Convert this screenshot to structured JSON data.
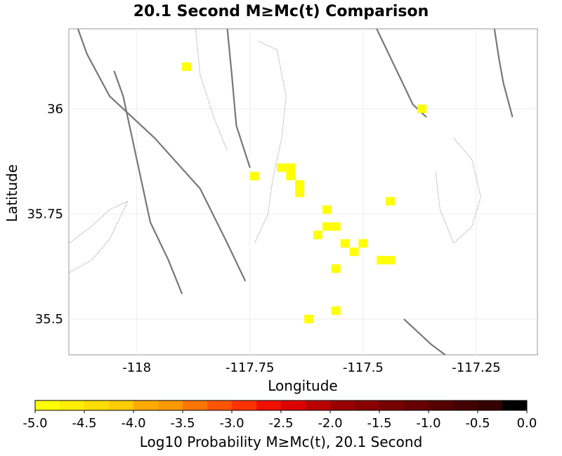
{
  "chart_data": {
    "type": "heatmap",
    "title": "20.1 Second M≥Mc(t) Comparison",
    "xlabel": "Longitude",
    "ylabel": "Latitude",
    "xlim": [
      -118.15,
      -117.115
    ],
    "ylim": [
      35.415,
      36.19
    ],
    "x_ticks": [
      {
        "value": -118,
        "label": "-118"
      },
      {
        "value": -117.75,
        "label": "-117.75"
      },
      {
        "value": -117.5,
        "label": "-117.5"
      },
      {
        "value": -117.25,
        "label": "-117.25"
      }
    ],
    "y_ticks": [
      {
        "value": 36,
        "label": "36"
      },
      {
        "value": 35.75,
        "label": "35.75"
      },
      {
        "value": 35.5,
        "label": "35.5"
      }
    ],
    "grid": true,
    "cell_size_deg": 0.02,
    "cells": [
      {
        "lon": -117.89,
        "lat": 36.1,
        "value": -5.0
      },
      {
        "lon": -117.37,
        "lat": 36.0,
        "value": -5.0
      },
      {
        "lon": -117.74,
        "lat": 35.84,
        "value": -5.0
      },
      {
        "lon": -117.68,
        "lat": 35.86,
        "value": -5.0
      },
      {
        "lon": -117.66,
        "lat": 35.86,
        "value": -5.0
      },
      {
        "lon": -117.66,
        "lat": 35.84,
        "value": -5.0
      },
      {
        "lon": -117.64,
        "lat": 35.82,
        "value": -5.0
      },
      {
        "lon": -117.64,
        "lat": 35.8,
        "value": -5.0
      },
      {
        "lon": -117.58,
        "lat": 35.76,
        "value": -5.0
      },
      {
        "lon": -117.58,
        "lat": 35.72,
        "value": -5.0
      },
      {
        "lon": -117.56,
        "lat": 35.72,
        "value": -5.0
      },
      {
        "lon": -117.6,
        "lat": 35.7,
        "value": -5.0
      },
      {
        "lon": -117.54,
        "lat": 35.68,
        "value": -5.0
      },
      {
        "lon": -117.52,
        "lat": 35.66,
        "value": -5.0
      },
      {
        "lon": -117.5,
        "lat": 35.68,
        "value": -5.0
      },
      {
        "lon": -117.46,
        "lat": 35.64,
        "value": -5.0
      },
      {
        "lon": -117.44,
        "lat": 35.64,
        "value": -5.0
      },
      {
        "lon": -117.44,
        "lat": 35.78,
        "value": -5.0
      },
      {
        "lon": -117.56,
        "lat": 35.62,
        "value": -5.0
      },
      {
        "lon": -117.56,
        "lat": 35.52,
        "value": -5.0
      },
      {
        "lon": -117.62,
        "lat": 35.5,
        "value": -5.0
      }
    ],
    "faults": [
      [
        [
          -118.13,
          36.19
        ],
        [
          -118.11,
          36.13
        ],
        [
          -118.06,
          36.03
        ],
        [
          -117.96,
          35.93
        ],
        [
          -117.86,
          35.81
        ],
        [
          -117.8,
          35.68
        ],
        [
          -117.76,
          35.59
        ]
      ],
      [
        [
          -118.05,
          36.09
        ],
        [
          -118.03,
          36.03
        ],
        [
          -118.01,
          35.93
        ],
        [
          -117.99,
          35.83
        ],
        [
          -117.97,
          35.73
        ],
        [
          -117.93,
          35.64
        ],
        [
          -117.9,
          35.56
        ]
      ],
      [
        [
          -117.8,
          36.19
        ],
        [
          -117.79,
          36.08
        ],
        [
          -117.78,
          35.96
        ],
        [
          -117.75,
          35.86
        ]
      ],
      [
        [
          -117.47,
          36.19
        ],
        [
          -117.43,
          36.1
        ],
        [
          -117.39,
          36.01
        ],
        [
          -117.36,
          35.98
        ]
      ],
      [
        [
          -117.21,
          36.19
        ],
        [
          -117.2,
          36.12
        ],
        [
          -117.19,
          36.06
        ],
        [
          -117.17,
          35.98
        ]
      ],
      [
        [
          -117.41,
          35.5
        ],
        [
          -117.35,
          35.44
        ],
        [
          -117.3,
          35.4
        ]
      ]
    ],
    "outlines": [
      [
        [
          -118.15,
          35.68
        ],
        [
          -118.1,
          35.72
        ],
        [
          -118.06,
          35.76
        ],
        [
          -118.02,
          35.78
        ],
        [
          -118.06,
          35.69
        ],
        [
          -118.1,
          35.64
        ],
        [
          -118.15,
          35.61
        ]
      ],
      [
        [
          -117.73,
          36.16
        ],
        [
          -117.69,
          36.14
        ],
        [
          -117.67,
          36.03
        ],
        [
          -117.68,
          35.93
        ],
        [
          -117.7,
          35.83
        ],
        [
          -117.71,
          35.75
        ],
        [
          -117.74,
          35.68
        ]
      ],
      [
        [
          -117.3,
          35.93
        ],
        [
          -117.26,
          35.88
        ],
        [
          -117.24,
          35.79
        ],
        [
          -117.26,
          35.72
        ],
        [
          -117.3,
          35.68
        ],
        [
          -117.33,
          35.76
        ],
        [
          -117.34,
          35.85
        ]
      ],
      [
        [
          -117.87,
          36.19
        ],
        [
          -117.86,
          36.08
        ],
        [
          -117.83,
          35.98
        ],
        [
          -117.8,
          35.9
        ]
      ]
    ]
  },
  "colorbar": {
    "label": "Log10 Probability M≥Mc(t), 20.1 Second",
    "min": -5.0,
    "max": 0.0,
    "tick_labels": [
      "-5.0",
      "-4.5",
      "-4.0",
      "-3.5",
      "-3.0",
      "-2.5",
      "-2.0",
      "-1.5",
      "-1.0",
      "-0.5",
      "0.0"
    ],
    "segment_colors": [
      "#ffff00",
      "#ffee00",
      "#ffdd00",
      "#ffcc00",
      "#ffaa00",
      "#ff9900",
      "#ff7700",
      "#ff5500",
      "#ff3300",
      "#ee1100",
      "#dd0000",
      "#bb0000",
      "#990000",
      "#880000",
      "#770000",
      "#660000",
      "#550000",
      "#440000",
      "#330000",
      "#000000"
    ]
  }
}
